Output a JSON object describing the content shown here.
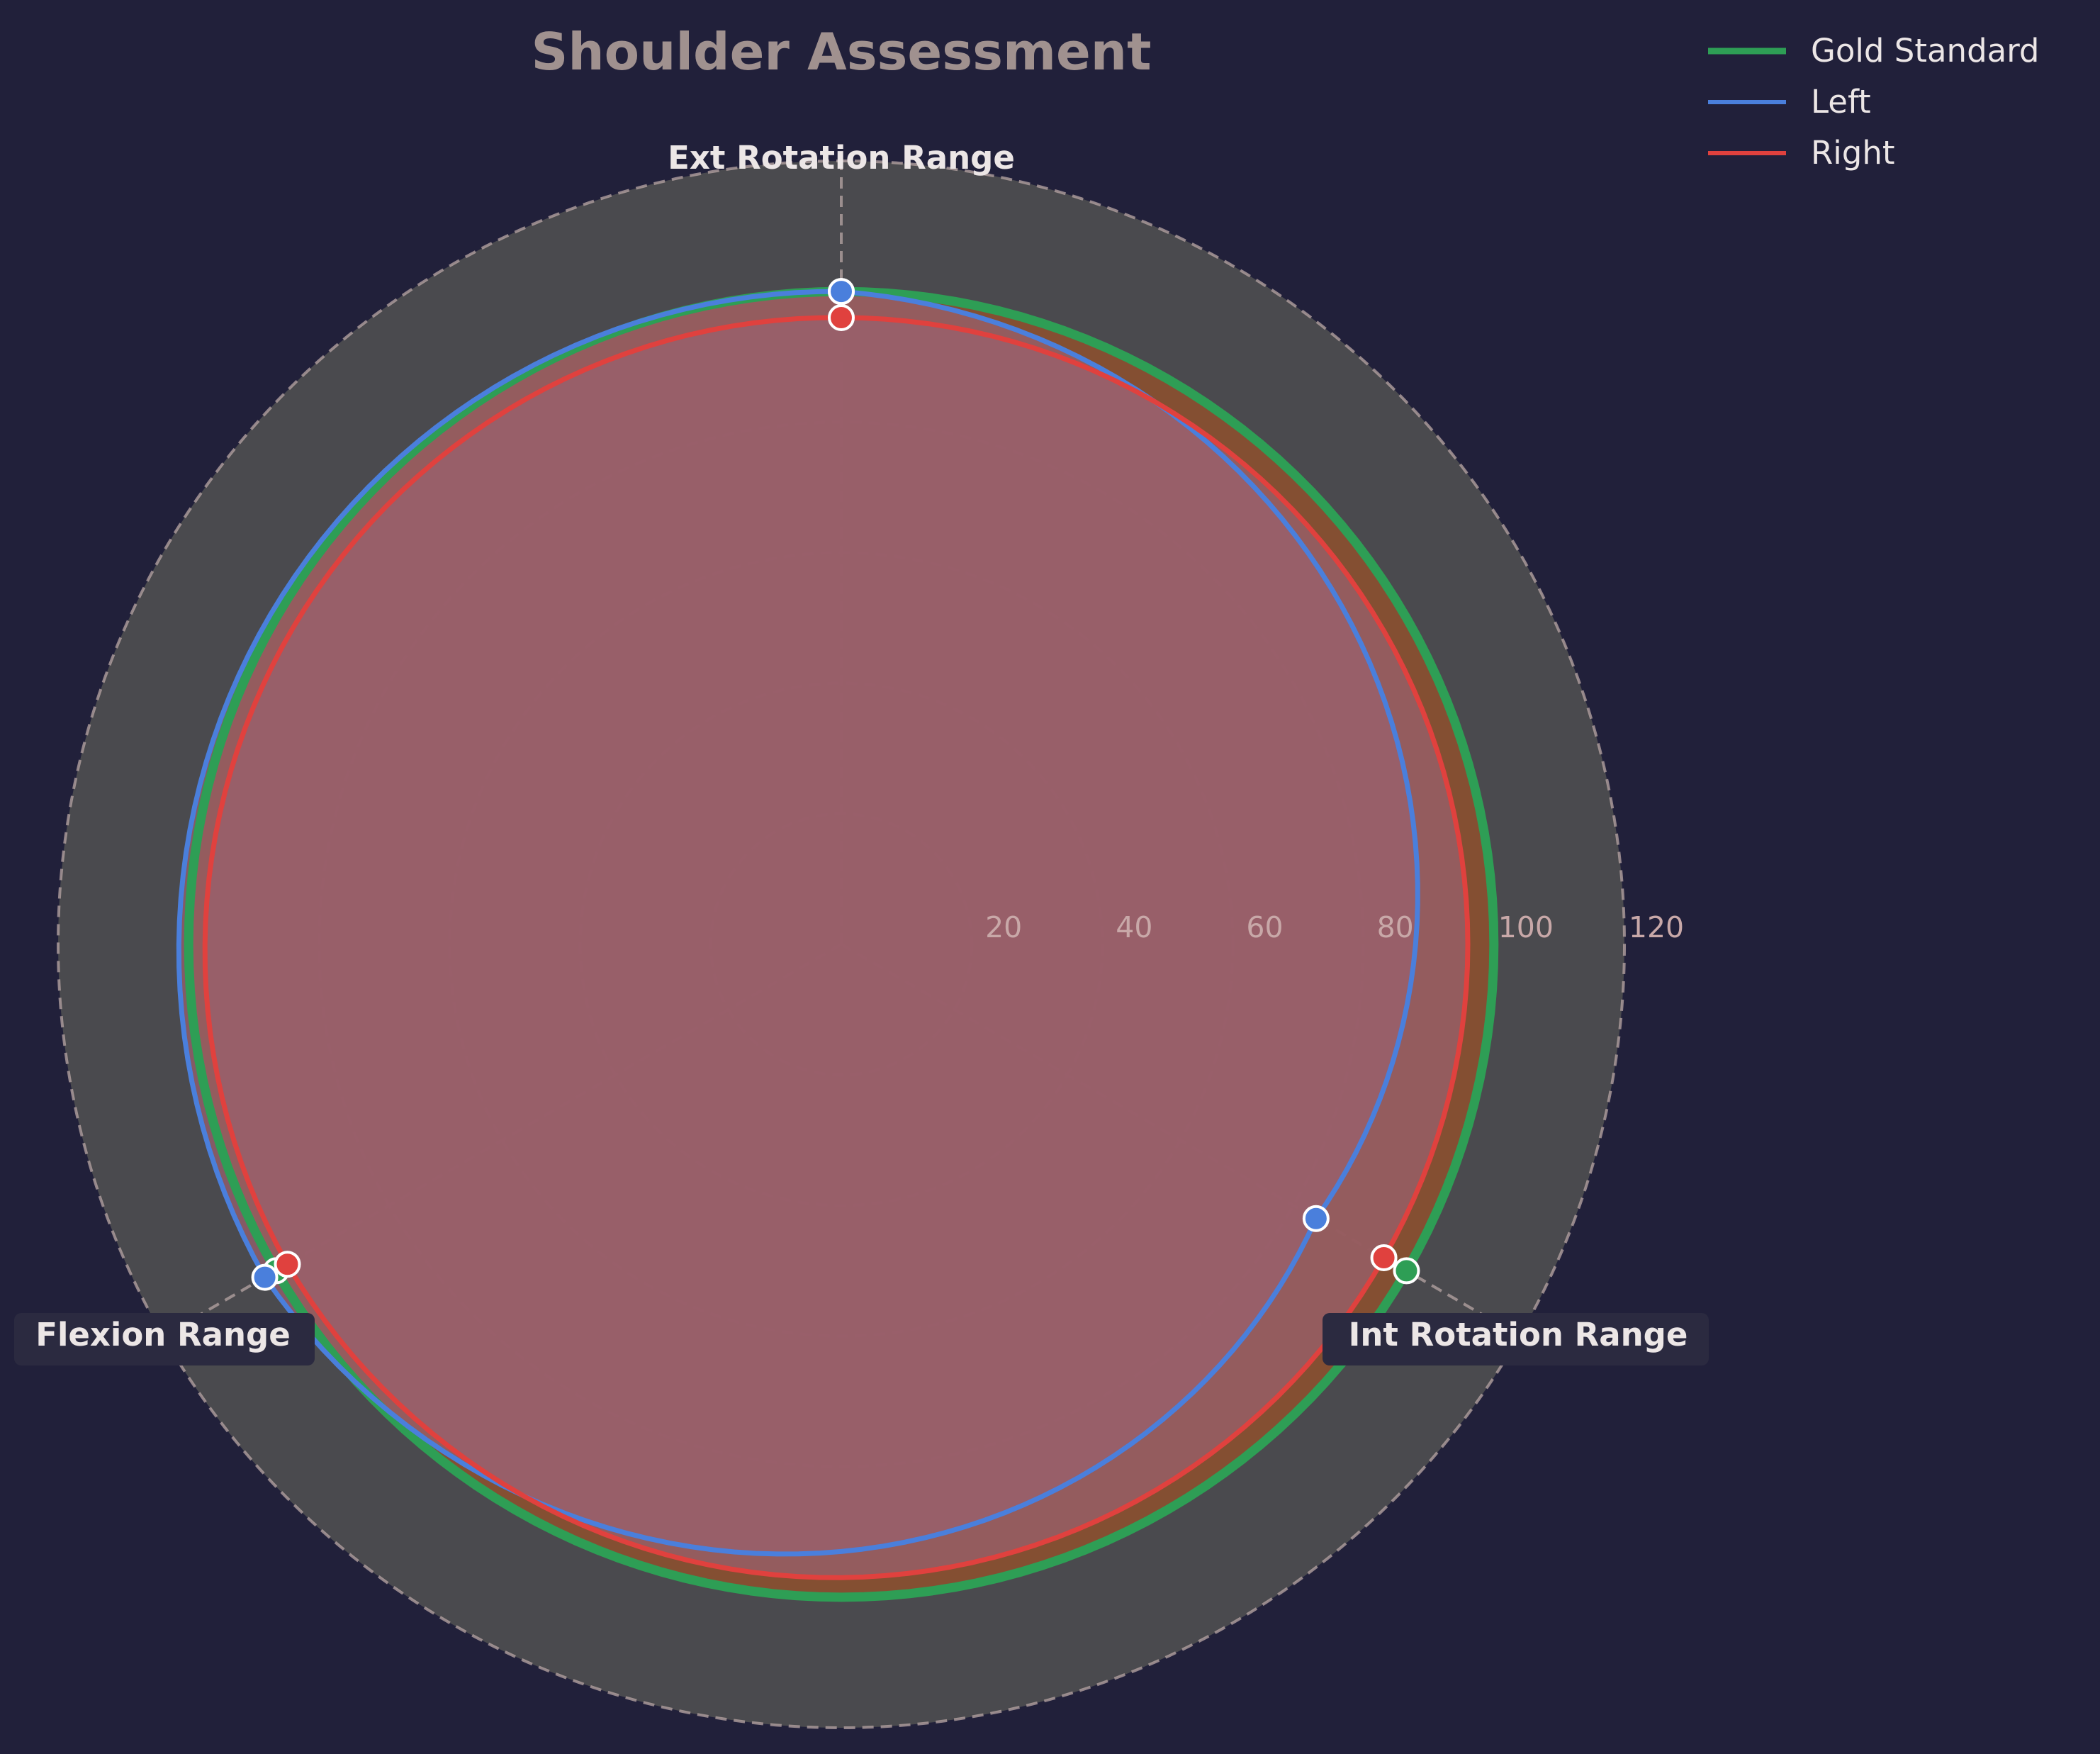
{
  "chart_data": {
    "type": "radar",
    "title": "Shoulder Assessment",
    "axes": [
      "Ext Rotation Range",
      "Int Rotation Range",
      "Flexion Range"
    ],
    "radial_ticks": [
      "20",
      "40",
      "60",
      "80",
      "100",
      "120"
    ],
    "r_range": [
      0,
      120
    ],
    "grid": true,
    "legend_position": "top-right",
    "series": [
      {
        "name": "Gold Standard",
        "values": [
          100,
          100,
          100
        ],
        "color": "#2e9e55"
      },
      {
        "name": "Left",
        "values": [
          100,
          84,
          102
        ],
        "color": "#4a7fdc"
      },
      {
        "name": "Right",
        "values": [
          96,
          96,
          98
        ],
        "color": "#e0413e"
      }
    ]
  },
  "colors": {
    "background": "#21203a",
    "plot_background": "#4a4a4e",
    "grid": "#b09f9f",
    "title": "#a0918f",
    "tick": "#c8a8a8",
    "fill": "#9a606e",
    "fill_band": "#8b5030"
  }
}
